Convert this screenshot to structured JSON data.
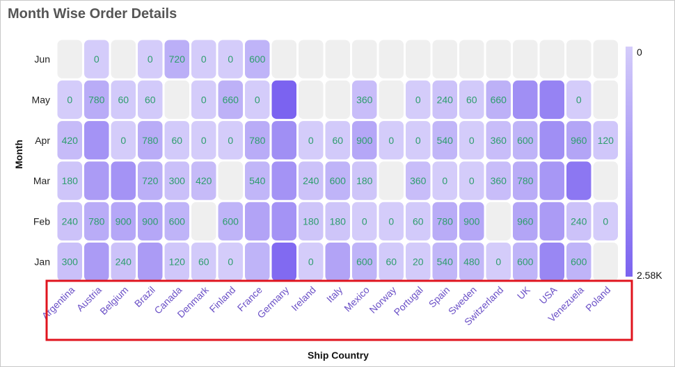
{
  "title": "Month Wise Order Details",
  "chart_data": {
    "type": "heatmap",
    "title": "Month Wise Order Details",
    "xlabel": "Ship Country",
    "ylabel": "Month",
    "x_categories": [
      "Argentina",
      "Austria",
      "Belgium",
      "Brazil",
      "Canada",
      "Denmark",
      "Finland",
      "France",
      "Germany",
      "Ireland",
      "Italy",
      "Mexico",
      "Norway",
      "Portugal",
      "Spain",
      "Sweden",
      "Switzerland",
      "UK",
      "USA",
      "Venezuela",
      "Poland"
    ],
    "y_categories": [
      "Jun",
      "May",
      "Apr",
      "Mar",
      "Feb",
      "Jan"
    ],
    "values": [
      [
        null,
        0,
        null,
        0,
        720,
        0,
        0,
        600,
        null,
        null,
        null,
        null,
        null,
        null,
        null,
        null,
        null,
        null,
        null,
        null,
        null
      ],
      [
        0,
        780,
        60,
        60,
        null,
        0,
        660,
        0,
        2580,
        null,
        null,
        360,
        null,
        0,
        240,
        60,
        660,
        1500,
        1800,
        0,
        null
      ],
      [
        420,
        1400,
        0,
        780,
        60,
        0,
        0,
        780,
        1500,
        0,
        60,
        900,
        0,
        0,
        540,
        0,
        360,
        600,
        1500,
        960,
        120
      ],
      [
        180,
        1200,
        1400,
        720,
        300,
        420,
        null,
        540,
        1400,
        240,
        600,
        180,
        null,
        360,
        0,
        0,
        360,
        780,
        1300,
        2100,
        null
      ],
      [
        240,
        780,
        900,
        900,
        600,
        null,
        600,
        1000,
        1400,
        180,
        180,
        0,
        0,
        60,
        780,
        900,
        null,
        960,
        1200,
        240,
        0
      ],
      [
        300,
        1200,
        240,
        1200,
        120,
        60,
        0,
        600,
        2400,
        0,
        1000,
        600,
        60,
        20,
        540,
        480,
        0,
        600,
        1700,
        600,
        null
      ]
    ],
    "shown_labels": [
      [
        null,
        "0",
        null,
        "0",
        "720",
        "0",
        "0",
        "600",
        null,
        null,
        null,
        null,
        null,
        null,
        null,
        null,
        null,
        null,
        null,
        null,
        null
      ],
      [
        "0",
        "780",
        "60",
        "60",
        null,
        "0",
        "660",
        "0",
        null,
        null,
        null,
        "360",
        null,
        "0",
        "240",
        "60",
        "660",
        null,
        null,
        "0",
        null
      ],
      [
        "420",
        null,
        "0",
        "780",
        "60",
        "0",
        "0",
        "780",
        null,
        "0",
        "60",
        "900",
        "0",
        "0",
        "540",
        "0",
        "360",
        "600",
        null,
        "960",
        "120"
      ],
      [
        "180",
        null,
        null,
        "720",
        "300",
        "420",
        null,
        "540",
        null,
        "240",
        "600",
        "180",
        null,
        "360",
        "0",
        "0",
        "360",
        "780",
        null,
        null,
        null
      ],
      [
        "240",
        "780",
        "900",
        "900",
        "600",
        null,
        "600",
        null,
        null,
        "180",
        "180",
        "0",
        "0",
        "60",
        "780",
        "900",
        null,
        "960",
        null,
        "240",
        "0"
      ],
      [
        "300",
        null,
        "240",
        null,
        "120",
        "60",
        "0",
        null,
        null,
        "0",
        null,
        "600",
        "60",
        "20",
        "540",
        "480",
        "0",
        "600",
        null,
        "600",
        null
      ]
    ],
    "color_scale": {
      "min": 0,
      "max": 2580,
      "min_color": "#d4ccfa",
      "max_color": "#7b63f0",
      "empty_color": "#efefef"
    },
    "legend": {
      "min_label": "0",
      "max_label": "2.58K",
      "position": "right"
    }
  },
  "colors": {
    "highlight_box": "#e0141e",
    "value_text": "#2e9d6e",
    "country_text": "#6a4fc6"
  }
}
